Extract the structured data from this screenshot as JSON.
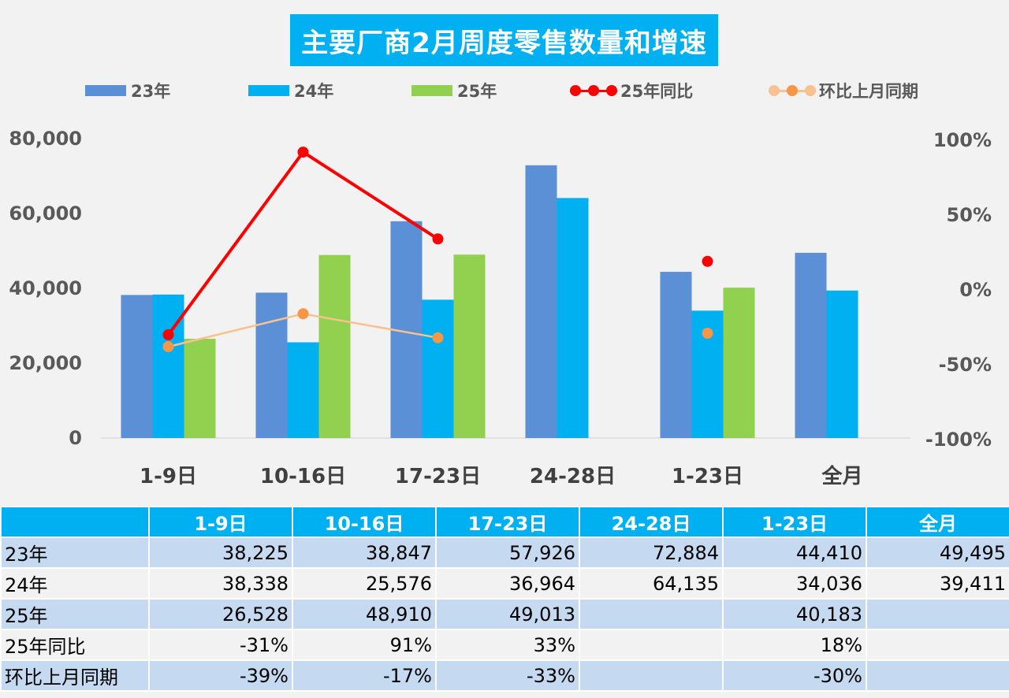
{
  "title": "主要厂商2月周度零售数量和增速",
  "legend": [
    {
      "label": "23年",
      "color": "#5b8fd6",
      "kind": "bar"
    },
    {
      "label": "24年",
      "color": "#00b0f0",
      "kind": "bar"
    },
    {
      "label": "25年",
      "color": "#92d050",
      "kind": "bar"
    },
    {
      "label": "25年同比",
      "color": "#ff0000",
      "kind": "line"
    },
    {
      "label": "环比上月同期",
      "color": "#f9c190",
      "kind": "line"
    }
  ],
  "chart_data": {
    "type": "bar",
    "title": "主要厂商2月周度零售数量和增速",
    "categories": [
      "1-9日",
      "10-16日",
      "17-23日",
      "24-28日",
      "1-23日",
      "全月"
    ],
    "ylim": [
      0,
      80000
    ],
    "y_ticks": [
      "0",
      "20,000",
      "40,000",
      "60,000",
      "80,000"
    ],
    "y2lim": [
      -1,
      1
    ],
    "y2_ticks": [
      "-100%",
      "-50%",
      "0%",
      "50%",
      "100%"
    ],
    "series": [
      {
        "name": "23年",
        "type": "bar",
        "axis": "left",
        "color": "#5b8fd6",
        "values": [
          38225,
          38847,
          57926,
          72884,
          44410,
          49495
        ]
      },
      {
        "name": "24年",
        "type": "bar",
        "axis": "left",
        "color": "#00b0f0",
        "values": [
          38338,
          25576,
          36964,
          64135,
          34036,
          39411
        ]
      },
      {
        "name": "25年",
        "type": "bar",
        "axis": "left",
        "color": "#92d050",
        "values": [
          26528,
          48910,
          49013,
          null,
          40183,
          null
        ]
      },
      {
        "name": "25年同比",
        "type": "line",
        "axis": "right",
        "color": "#ff0000",
        "values": [
          -0.31,
          0.91,
          0.33,
          null,
          0.18,
          null
        ]
      },
      {
        "name": "环比上月同期",
        "type": "line",
        "axis": "right",
        "color": "#f9c190",
        "marker_color": "#f79646",
        "values": [
          -0.39,
          -0.17,
          -0.33,
          null,
          -0.3,
          null
        ]
      }
    ],
    "legend_position": "top"
  },
  "table": {
    "header": [
      "",
      "1-9日",
      "10-16日",
      "17-23日",
      "24-28日",
      "1-23日",
      "全月"
    ],
    "rows": [
      [
        "23年",
        "38,225",
        "38,847",
        "57,926",
        "72,884",
        "44,410",
        "49,495"
      ],
      [
        "24年",
        "38,338",
        "25,576",
        "36,964",
        "64,135",
        "34,036",
        "39,411"
      ],
      [
        "25年",
        "26,528",
        "48,910",
        "49,013",
        "",
        "40,183",
        ""
      ],
      [
        "25年同比",
        "-31%",
        "91%",
        "33%",
        "",
        "18%",
        ""
      ],
      [
        "环比上月同期",
        "-39%",
        "-17%",
        "-33%",
        "",
        "-30%",
        ""
      ]
    ]
  }
}
